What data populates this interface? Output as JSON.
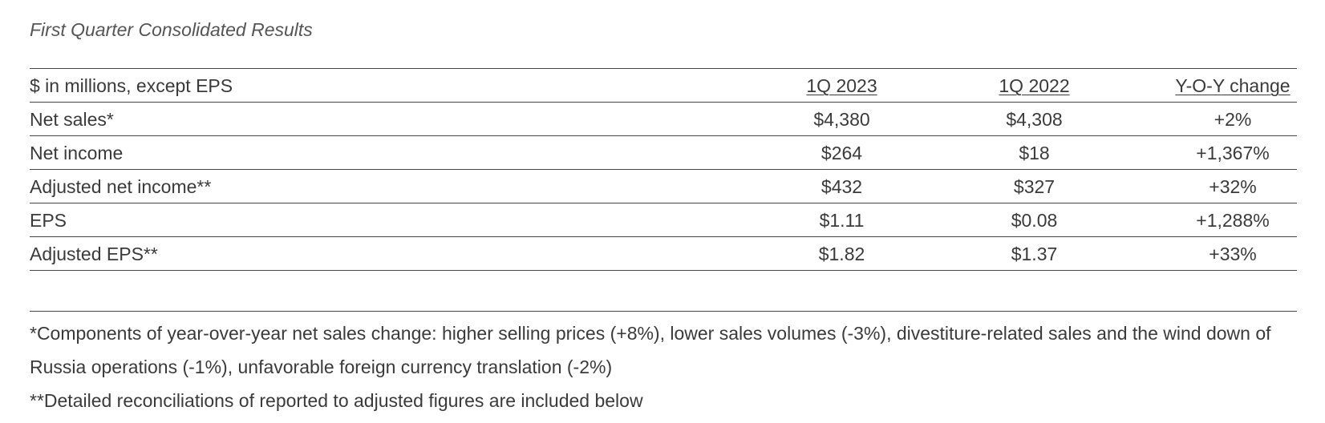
{
  "title": "First Quarter Consolidated Results",
  "table": {
    "headers": {
      "label": "$ in millions, except EPS",
      "col1": "1Q 2023",
      "col2": "1Q 2022",
      "col3": "Y-O-Y change"
    },
    "rows": [
      {
        "label": "Net sales*",
        "q2023": "$4,380",
        "q2022": "$4,308",
        "yoy": "+2%"
      },
      {
        "label": "Net income",
        "q2023": "$264",
        "q2022": "$18",
        "yoy": "+1,367%"
      },
      {
        "label": "Adjusted net income**",
        "q2023": "$432",
        "q2022": "$327",
        "yoy": "+32%"
      },
      {
        "label": "EPS",
        "q2023": "$1.11",
        "q2022": "$0.08",
        "yoy": "+1,288%"
      },
      {
        "label": "Adjusted EPS**",
        "q2023": "$1.82",
        "q2022": "$1.37",
        "yoy": "+33%"
      }
    ]
  },
  "footnotes": [
    "*Components of year-over-year net sales change: higher selling prices (+8%), lower sales volumes (-3%), divestiture-related sales and the wind down of Russia operations (-1%), unfavorable foreign currency translation (-2%)",
    "**Detailed reconciliations of reported to adjusted figures are included below"
  ]
}
